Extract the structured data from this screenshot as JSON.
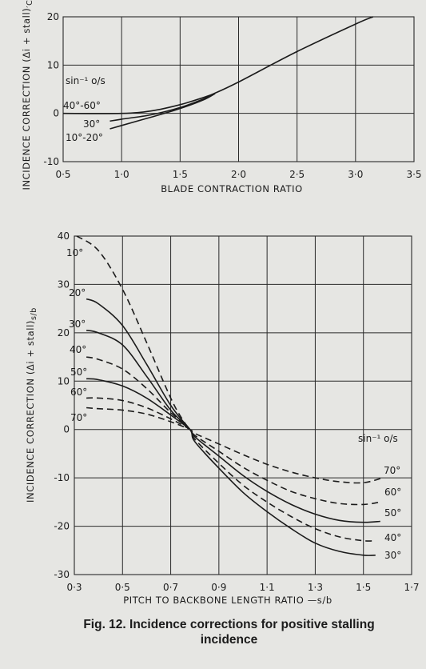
{
  "chart_data": [
    {
      "type": "line",
      "xlabel": "BLADE CONTRACTION RATIO",
      "ylabel": "INCIDENCE CORRECTION (Δi + stall)′CR",
      "xlim": [
        0.5,
        3.5
      ],
      "ylim": [
        -10,
        20
      ],
      "xticks": [
        0.5,
        1.0,
        1.5,
        2.0,
        2.5,
        3.0,
        3.5
      ],
      "xtick_labels": [
        "0·5",
        "1·0",
        "1·5",
        "2·0",
        "2·5",
        "3·0",
        "3·5"
      ],
      "yticks": [
        -10,
        0,
        10,
        20
      ],
      "ytick_labels": [
        "-10",
        "0",
        "10",
        "20"
      ],
      "grid": true,
      "legend_title": "sin⁻¹ o/s",
      "series": [
        {
          "name": "40°–60°",
          "style": "solid",
          "x": [
            0.5,
            1.0,
            1.25,
            1.5,
            1.7,
            1.8,
            2.0,
            2.5,
            3.0,
            3.15
          ],
          "y": [
            0.0,
            0.0,
            0.5,
            1.8,
            3.3,
            4.2,
            6.5,
            12.8,
            18.5,
            20.0
          ]
        },
        {
          "name": "30°",
          "style": "solid",
          "x": [
            0.9,
            1.0,
            1.25,
            1.5,
            1.7,
            1.8
          ],
          "y": [
            -1.6,
            -1.2,
            -0.3,
            1.2,
            3.0,
            4.2
          ]
        },
        {
          "name": "10°–20°",
          "style": "solid",
          "x": [
            0.9,
            1.0,
            1.25,
            1.5,
            1.7,
            1.8
          ],
          "y": [
            -3.2,
            -2.5,
            -0.8,
            1.0,
            2.8,
            4.1
          ]
        }
      ],
      "labels": [
        "40°-60°",
        "30°",
        "10°-20°"
      ]
    },
    {
      "type": "line",
      "xlabel": "PITCH TO BACKBONE LENGTH RATIO —s/b",
      "ylabel": "INCIDENCE CORRECTION (Δi + stall)s/b",
      "xlim": [
        0.3,
        1.7
      ],
      "ylim": [
        -30,
        40
      ],
      "xticks": [
        0.3,
        0.5,
        0.7,
        0.9,
        1.1,
        1.3,
        1.5,
        1.7
      ],
      "xtick_labels": [
        "0·3",
        "0·5",
        "0·7",
        "0·9",
        "1·1",
        "1·3",
        "1·5",
        "1·7"
      ],
      "yticks": [
        -30,
        -20,
        -10,
        0,
        10,
        20,
        30,
        40
      ],
      "ytick_labels": [
        "-30",
        "-20",
        "-10",
        "0",
        "10",
        "20",
        "30",
        "40"
      ],
      "grid": true,
      "legend_title": "sin⁻¹ o/s",
      "series": [
        {
          "name": "10°",
          "style": "dashed",
          "x": [
            0.31,
            0.4,
            0.5,
            0.6,
            0.7,
            0.75,
            0.78
          ],
          "y": [
            40.0,
            37.0,
            29.0,
            18.0,
            6.5,
            2.0,
            0.0
          ]
        },
        {
          "name": "20°",
          "style": "solid",
          "x": [
            0.35,
            0.4,
            0.5,
            0.6,
            0.7,
            0.78
          ],
          "y": [
            27.0,
            26.0,
            21.5,
            13.5,
            5.0,
            0.0
          ]
        },
        {
          "name": "30°",
          "style": "solid",
          "x": [
            0.35,
            0.4,
            0.5,
            0.6,
            0.7,
            0.78,
            0.8,
            0.9,
            1.0,
            1.1,
            1.2,
            1.3,
            1.4,
            1.5,
            1.55
          ],
          "y": [
            20.5,
            20.0,
            17.5,
            11.0,
            4.0,
            0.0,
            -2.5,
            -8.0,
            -13.0,
            -17.0,
            -20.5,
            -23.5,
            -25.2,
            -26.0,
            -26.0
          ]
        },
        {
          "name": "40°",
          "style": "dashed",
          "x": [
            0.35,
            0.4,
            0.5,
            0.6,
            0.7,
            0.78,
            0.8,
            0.9,
            1.0,
            1.1,
            1.2,
            1.3,
            1.4,
            1.5,
            1.55
          ],
          "y": [
            15.0,
            14.5,
            12.5,
            8.5,
            3.5,
            0.0,
            -2.0,
            -7.0,
            -11.5,
            -15.0,
            -18.0,
            -20.5,
            -22.2,
            -23.0,
            -23.0
          ]
        },
        {
          "name": "50°",
          "style": "solid",
          "x": [
            0.35,
            0.4,
            0.5,
            0.6,
            0.7,
            0.78,
            0.8,
            0.9,
            1.0,
            1.1,
            1.2,
            1.3,
            1.4,
            1.5,
            1.57
          ],
          "y": [
            10.5,
            10.3,
            9.0,
            6.5,
            3.0,
            0.0,
            -1.5,
            -5.5,
            -9.5,
            -12.8,
            -15.5,
            -17.5,
            -18.8,
            -19.2,
            -19.0
          ]
        },
        {
          "name": "60°",
          "style": "dashed",
          "x": [
            0.35,
            0.4,
            0.5,
            0.6,
            0.7,
            0.78,
            0.8,
            0.9,
            1.0,
            1.1,
            1.2,
            1.3,
            1.4,
            1.5,
            1.57
          ],
          "y": [
            6.5,
            6.5,
            6.0,
            4.5,
            2.2,
            0.0,
            -1.2,
            -4.5,
            -7.8,
            -10.5,
            -12.8,
            -14.3,
            -15.3,
            -15.5,
            -15.0
          ]
        },
        {
          "name": "70°",
          "style": "dashed",
          "x": [
            0.35,
            0.4,
            0.5,
            0.6,
            0.7,
            0.78,
            0.8,
            0.9,
            1.0,
            1.1,
            1.2,
            1.3,
            1.4,
            1.5,
            1.58
          ],
          "y": [
            4.5,
            4.3,
            4.0,
            3.2,
            1.6,
            0.0,
            -0.8,
            -3.0,
            -5.2,
            -7.2,
            -8.8,
            -10.0,
            -10.8,
            -11.0,
            -10.0
          ]
        }
      ],
      "labels": [
        "10°",
        "20°",
        "30°",
        "40°",
        "50°",
        "60°",
        "70°",
        "70°",
        "60°",
        "50°",
        "40°",
        "30°"
      ]
    }
  ],
  "caption": {
    "line1": "Fig. 12.  Incidence corrections for positive stalling",
    "line2": "incidence"
  }
}
